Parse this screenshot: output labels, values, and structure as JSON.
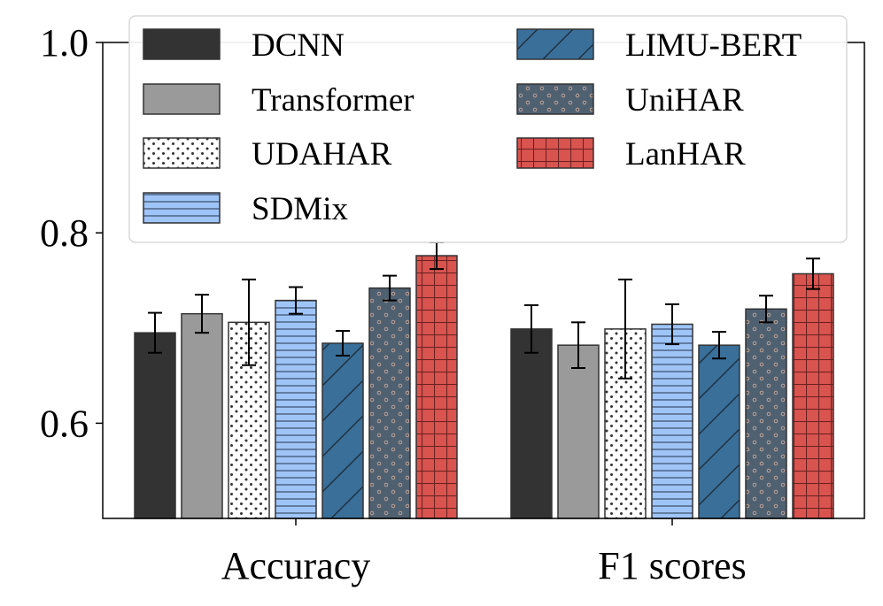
{
  "chart_data": {
    "type": "bar",
    "categories": [
      "Accuracy",
      "F1 scores"
    ],
    "ylim": [
      0.5,
      1.0
    ],
    "yticks": [
      "0.6",
      "0.8",
      "1.0"
    ],
    "ytick_values": [
      0.6,
      0.8,
      1.0
    ],
    "xlabel": "",
    "ylabel": "",
    "title": "",
    "grid": false,
    "legend_position": "top",
    "series": [
      {
        "name": "DCNN",
        "values": [
          0.695,
          0.699
        ],
        "errors": [
          0.021,
          0.025
        ],
        "color": "#333333",
        "hatch": "none"
      },
      {
        "name": "Transformer",
        "values": [
          0.715,
          0.682
        ],
        "errors": [
          0.02,
          0.024
        ],
        "color": "#9a9a9a",
        "hatch": "none"
      },
      {
        "name": "UDAHAR",
        "values": [
          0.706,
          0.699
        ],
        "errors": [
          0.045,
          0.052
        ],
        "color": "#ffffff",
        "hatch": "dots"
      },
      {
        "name": "SDMix",
        "values": [
          0.729,
          0.704
        ],
        "errors": [
          0.014,
          0.021
        ],
        "color": "#9fc5f8",
        "hatch": "hlines"
      },
      {
        "name": "LIMU-BERT",
        "values": [
          0.684,
          0.682
        ],
        "errors": [
          0.013,
          0.014
        ],
        "color": "#3a6f99",
        "hatch": "diag"
      },
      {
        "name": "UniHAR",
        "values": [
          0.742,
          0.72
        ],
        "errors": [
          0.013,
          0.014
        ],
        "color": "#4f6071",
        "hatch": "circles"
      },
      {
        "name": "LanHAR",
        "values": [
          0.776,
          0.757
        ],
        "errors": [
          0.014,
          0.016
        ],
        "color": "#d9534f",
        "hatch": "grid"
      }
    ]
  }
}
